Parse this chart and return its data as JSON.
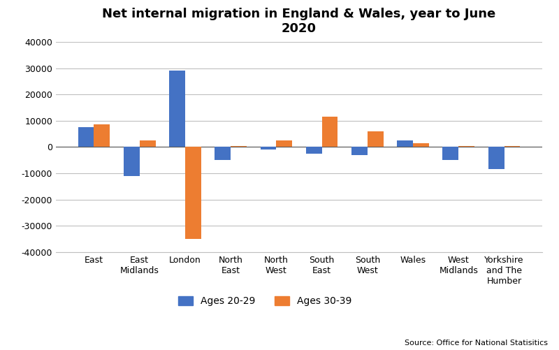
{
  "title": "Net internal migration in England & Wales, year to June\n2020",
  "categories": [
    "East",
    "East\nMidlands",
    "London",
    "North\nEast",
    "North\nWest",
    "South\nEast",
    "South\nWest",
    "Wales",
    "West\nMidlands",
    "Yorkshire\nand The\nHumber"
  ],
  "ages_20_29": [
    7500,
    -11000,
    29000,
    -5000,
    -1000,
    -2500,
    -3000,
    2500,
    -5000,
    -8500
  ],
  "ages_30_39": [
    8500,
    2500,
    -35000,
    500,
    2500,
    11500,
    6000,
    1500,
    500,
    500
  ],
  "color_20_29": "#4472C4",
  "color_30_39": "#ED7D31",
  "ylim": [
    -40000,
    40000
  ],
  "yticks": [
    -40000,
    -30000,
    -20000,
    -10000,
    0,
    10000,
    20000,
    30000,
    40000
  ],
  "legend_labels": [
    "Ages 20-29",
    "Ages 30-39"
  ],
  "source_text": "Source: Office for National Statisitics",
  "background_color": "#FFFFFF",
  "grid_color": "#BFBFBF",
  "bar_width": 0.35,
  "figsize": [
    8.0,
    5.01
  ],
  "dpi": 100,
  "title_fontsize": 13,
  "tick_fontsize": 9,
  "legend_fontsize": 10
}
